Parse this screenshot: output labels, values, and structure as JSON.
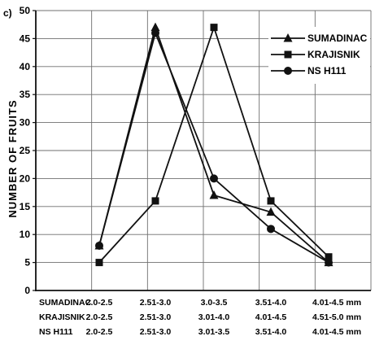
{
  "panel_label": "c)",
  "chart_data": {
    "type": "line",
    "ylabel": "NUMBER OF FRUITS",
    "ylim": [
      0,
      50
    ],
    "yticks": [
      0,
      5,
      10,
      15,
      20,
      25,
      30,
      35,
      40,
      45,
      50
    ],
    "x_positions": 5,
    "grid": true,
    "legend_placement": "top-right",
    "series": [
      {
        "name": "SUMADINAC",
        "marker": "triangle",
        "values": [
          8,
          47,
          17,
          14,
          5
        ],
        "category_row_label": "SUMADINAC",
        "categories": [
          "2.0-2.5",
          "2.51-3.0",
          "3.0-3.5",
          "3.51-4.0",
          "4.01-4.5 mm"
        ]
      },
      {
        "name": "KRAJISNIK",
        "marker": "square",
        "values": [
          5,
          16,
          47,
          16,
          6
        ],
        "category_row_label": "KRAJISNIK",
        "categories": [
          "2.0-2.5",
          "2.51-3.0",
          "3.01-4.0",
          "4.01-4.5",
          "4.51-5.0 mm"
        ]
      },
      {
        "name": "NS H111",
        "marker": "circle",
        "values": [
          8,
          46,
          20,
          11,
          5
        ],
        "category_row_label": "NS H111",
        "categories": [
          "2.0-2.5",
          "2.51-3.0",
          "3.01-3.5",
          "3.51-4.0",
          "4.01-4.5 mm"
        ]
      }
    ]
  }
}
